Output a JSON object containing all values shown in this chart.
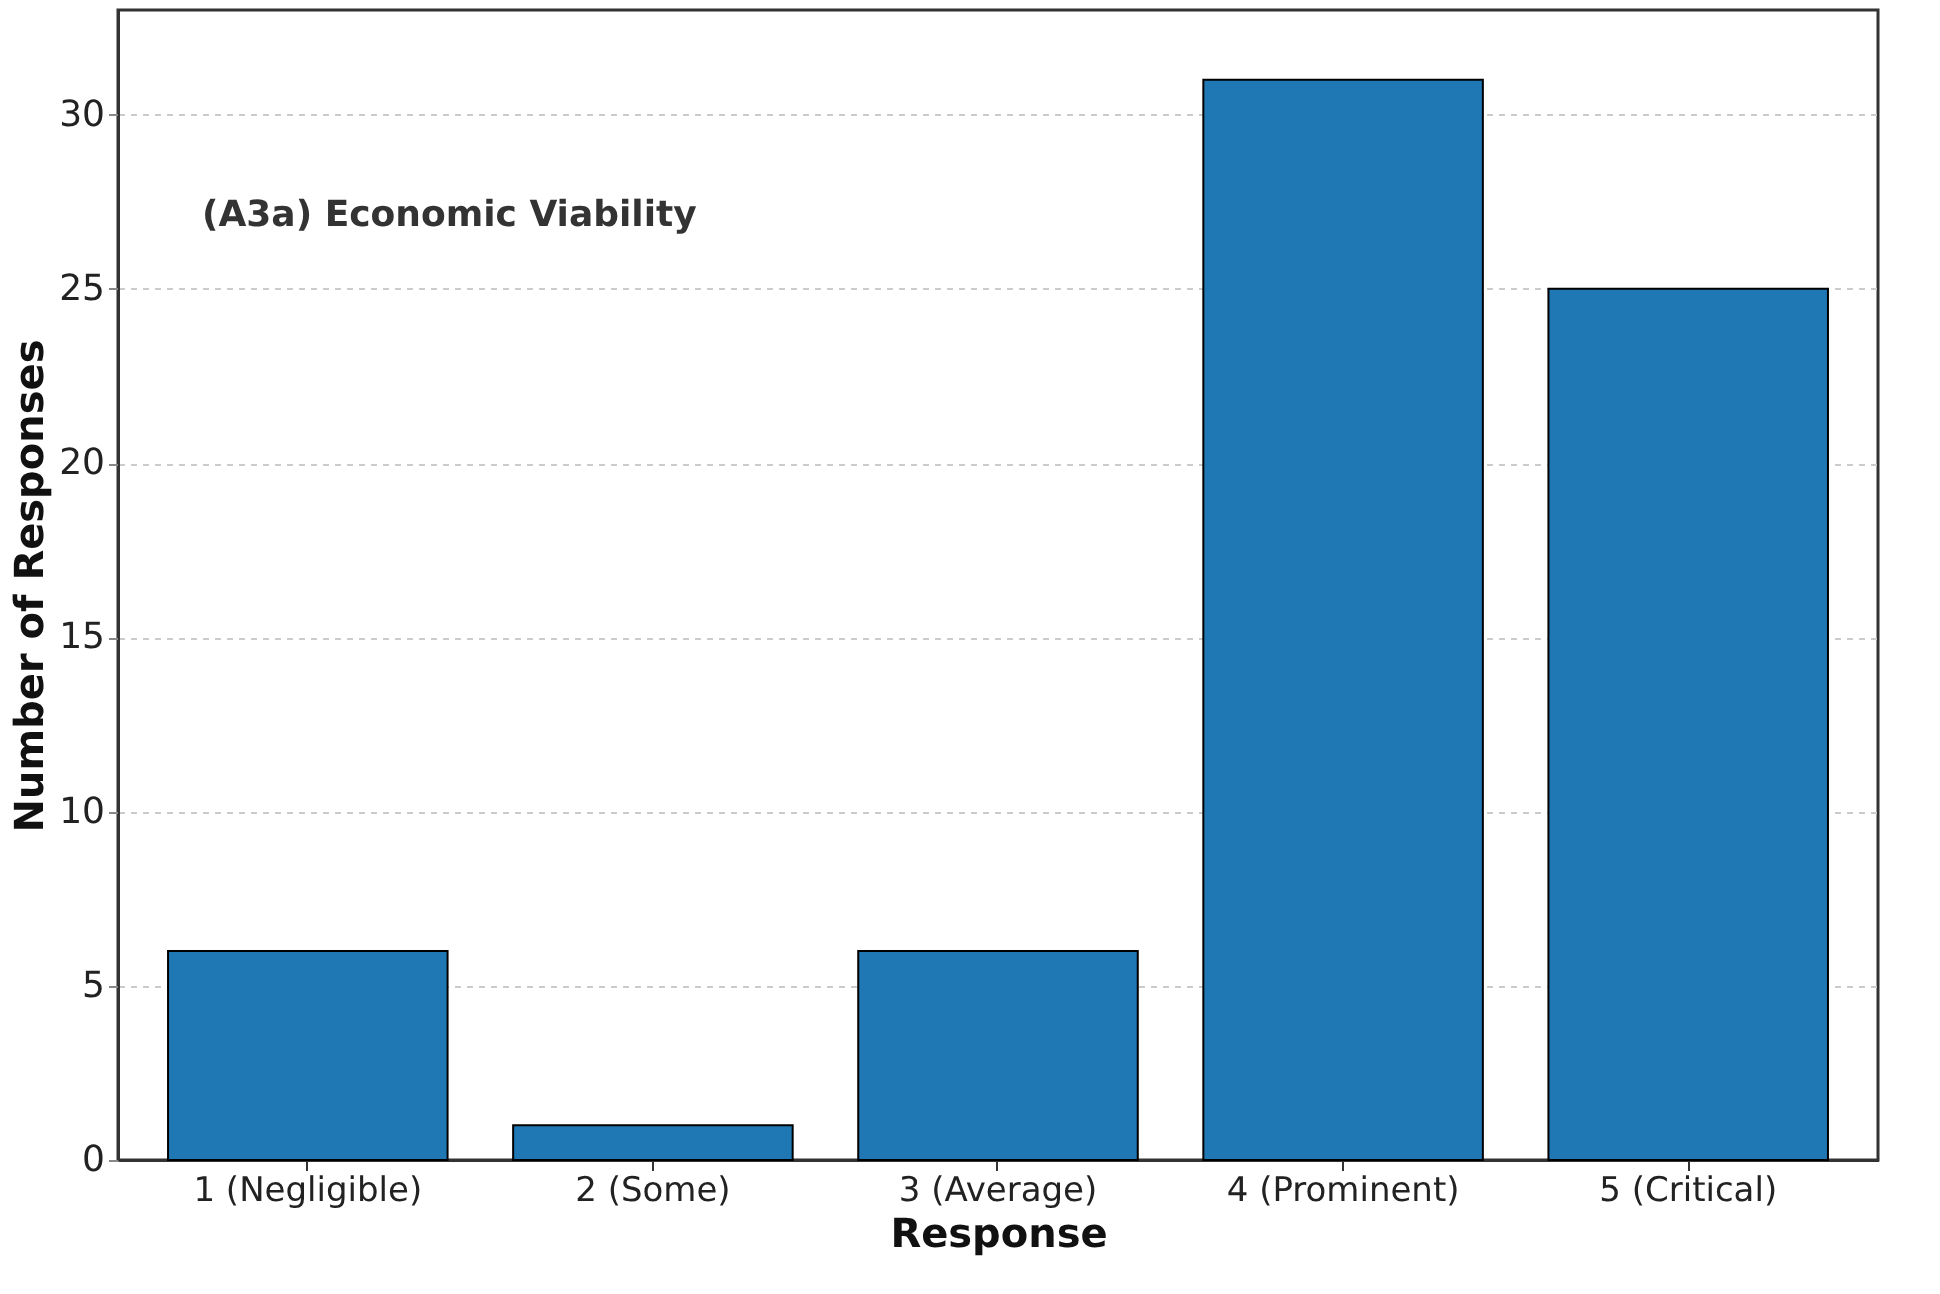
{
  "chart_data": {
    "type": "bar",
    "xlabel": "Response",
    "ylabel": "Number of Responses",
    "categories": [
      "1 (Negligible)",
      "2 (Some)",
      "3 (Average)",
      "4 (Prominent)",
      "5 (Critical)"
    ],
    "values": [
      6,
      1,
      6,
      31,
      25
    ],
    "color": "#1f77b4",
    "ylim": [
      0,
      33
    ],
    "yticks": [
      0,
      5,
      10,
      15,
      20,
      25,
      30
    ],
    "grid": "y",
    "annotations": [
      "(A3a) Economic Viability"
    ]
  }
}
